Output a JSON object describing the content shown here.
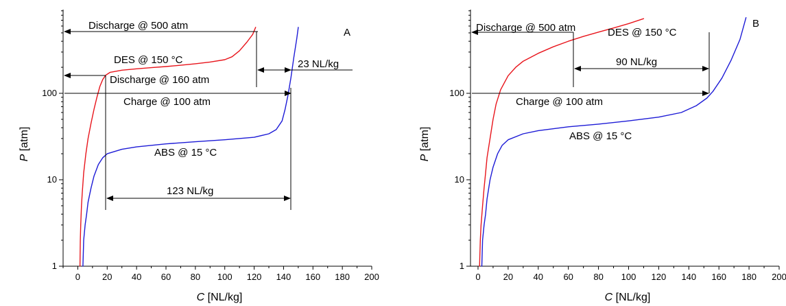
{
  "chart_data": [
    {
      "type": "line",
      "panel_label": "A",
      "xlabel": "C",
      "xlabel_unit": "[NL/kg]",
      "ylabel": "P",
      "ylabel_unit": "[atm]",
      "xlim": [
        -10,
        200
      ],
      "ylim": [
        1,
        900
      ],
      "y_scale": "log",
      "x_ticks": [
        0,
        20,
        40,
        60,
        80,
        100,
        120,
        140,
        160,
        180,
        200
      ],
      "y_ticks": [
        1,
        10,
        100
      ],
      "grid": false,
      "series": [
        {
          "name": "DES @ 150 °C",
          "label_pos": [
            28,
            245
          ],
          "color": "#e8141b",
          "points": [
            [
              1.5,
              1
            ],
            [
              1.7,
              2
            ],
            [
              2.0,
              3
            ],
            [
              2.5,
              5
            ],
            [
              3.0,
              7
            ],
            [
              4.0,
              12
            ],
            [
              5.5,
              20
            ],
            [
              7.0,
              30
            ],
            [
              9.0,
              45
            ],
            [
              11.0,
              65
            ],
            [
              13.0,
              90
            ],
            [
              15.0,
              120
            ],
            [
              17.0,
              145
            ],
            [
              19.0,
              162
            ],
            [
              22.0,
              175
            ],
            [
              30.0,
              185
            ],
            [
              40.0,
              192
            ],
            [
              50.0,
              198
            ],
            [
              60.0,
              204
            ],
            [
              70.0,
              211
            ],
            [
              80.0,
              220
            ],
            [
              90.0,
              230
            ],
            [
              100.0,
              245
            ],
            [
              105.0,
              265
            ],
            [
              110.0,
              310
            ],
            [
              115.0,
              390
            ],
            [
              119.0,
              480
            ],
            [
              121.0,
              580
            ]
          ]
        },
        {
          "name": "ABS @ 15 °C",
          "label_pos": [
            72,
            17
          ],
          "color": "#1c1ad6",
          "points": [
            [
              3.5,
              1
            ],
            [
              4.0,
              2
            ],
            [
              5.0,
              3
            ],
            [
              6.0,
              4
            ],
            [
              7.0,
              5.5
            ],
            [
              9.0,
              8
            ],
            [
              11.0,
              11
            ],
            [
              14.0,
              15
            ],
            [
              17.0,
              18
            ],
            [
              20.0,
              20
            ],
            [
              30.0,
              22.5
            ],
            [
              40.0,
              24
            ],
            [
              60.0,
              26
            ],
            [
              80.0,
              27.5
            ],
            [
              100.0,
              29
            ],
            [
              120.0,
              31
            ],
            [
              130.0,
              34
            ],
            [
              135.0,
              38
            ],
            [
              139.0,
              48
            ],
            [
              141.0,
              65
            ],
            [
              143.0,
              95
            ],
            [
              145.0,
              150
            ],
            [
              147.0,
              260
            ],
            [
              149.0,
              430
            ],
            [
              150.0,
              580
            ]
          ]
        }
      ],
      "annotations": [
        {
          "text": "Discharge @ 500 atm",
          "label_pos": [
            57,
            560
          ]
        },
        {
          "text": "Discharge @ 160 atm",
          "label_pos": [
            65,
            138
          ]
        },
        {
          "text": "Charge @ 100 atm",
          "label_pos": [
            45,
            75
          ]
        },
        {
          "text": "23 NL/kg",
          "label_pos": [
            162,
            210
          ]
        },
        {
          "text": "123 NL/kg",
          "label_pos": [
            81,
            6.8
          ]
        }
      ]
    },
    {
      "type": "line",
      "panel_label": "B",
      "xlabel": "C",
      "xlabel_unit": "[NL/kg]",
      "ylabel": "P",
      "ylabel_unit": "[atm]",
      "xlim": [
        -5,
        200
      ],
      "ylim": [
        1,
        900
      ],
      "y_scale": "log",
      "x_ticks": [
        0,
        20,
        40,
        60,
        80,
        100,
        120,
        140,
        160,
        180,
        200
      ],
      "y_ticks": [
        1,
        10,
        100
      ],
      "grid": false,
      "series": [
        {
          "name": "DES @ 150 °C",
          "label_pos": [
            115,
            500
          ],
          "color": "#e8141b",
          "points": [
            [
              1.0,
              1
            ],
            [
              1.5,
              2
            ],
            [
              2.0,
              3
            ],
            [
              3.0,
              5
            ],
            [
              4.0,
              8
            ],
            [
              5.0,
              12
            ],
            [
              6.0,
              18
            ],
            [
              8.0,
              30
            ],
            [
              10.0,
              50
            ],
            [
              12.0,
              75
            ],
            [
              15.0,
              110
            ],
            [
              20.0,
              160
            ],
            [
              25.0,
              200
            ],
            [
              30.0,
              235
            ],
            [
              40.0,
              290
            ],
            [
              50.0,
              345
            ],
            [
              60.0,
              400
            ],
            [
              70.0,
              455
            ],
            [
              80.0,
              510
            ],
            [
              90.0,
              570
            ],
            [
              100.0,
              640
            ],
            [
              110.0,
              730
            ]
          ]
        },
        {
          "name": "ABS @ 15 °C",
          "label_pos": [
            85,
            27
          ],
          "color": "#1c1ad6",
          "points": [
            [
              2.5,
              1
            ],
            [
              3.0,
              2
            ],
            [
              4.0,
              3
            ],
            [
              5.0,
              4
            ],
            [
              6.0,
              6
            ],
            [
              8.0,
              10
            ],
            [
              10.0,
              14
            ],
            [
              13.0,
              20
            ],
            [
              16.0,
              25
            ],
            [
              20.0,
              29
            ],
            [
              30.0,
              34
            ],
            [
              40.0,
              37
            ],
            [
              60.0,
              41
            ],
            [
              80.0,
              44
            ],
            [
              100.0,
              48
            ],
            [
              120.0,
              53
            ],
            [
              135.0,
              60
            ],
            [
              145.0,
              72
            ],
            [
              152.0,
              88
            ],
            [
              156.0,
              105
            ],
            [
              162.0,
              150
            ],
            [
              168.0,
              240
            ],
            [
              174.0,
              420
            ],
            [
              178.0,
              750
            ]
          ]
        }
      ],
      "annotations": [
        {
          "text": "Discharge @ 500 atm",
          "label_pos": [
            49,
            575
          ]
        },
        {
          "text": "Charge @ 100 atm",
          "label_pos": [
            65,
            73
          ]
        },
        {
          "text": "90 NL/kg",
          "label_pos": [
            103,
            220
          ]
        }
      ]
    }
  ]
}
